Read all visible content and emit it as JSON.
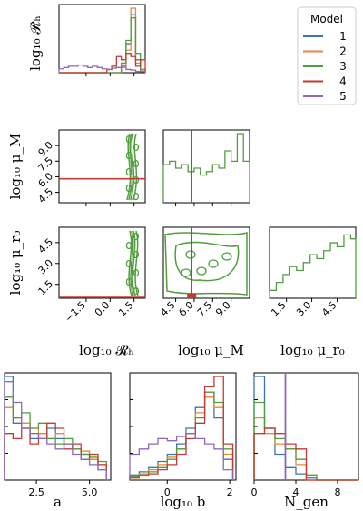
{
  "chart_data": {
    "type": "corner-histogram",
    "legend": {
      "title": "Model",
      "placement": "top-right",
      "entries": [
        {
          "label": "1",
          "color": "#3b75af"
        },
        {
          "label": "2",
          "color": "#ef8636"
        },
        {
          "label": "3",
          "color": "#519e3e"
        },
        {
          "label": "4",
          "color": "#c53a32"
        },
        {
          "label": "5",
          "color": "#8d69b8"
        }
      ]
    },
    "corner_axis_labels": {
      "rh": "log₁₀ 𝓡ₕ",
      "mum": "log₁₀ μ_M",
      "mur0": "log₁₀ μ_r₀"
    },
    "corner_ticks": {
      "rh": [
        "−1.5",
        "0.0",
        "1.5"
      ],
      "mum": [
        "4.5",
        "6.0",
        "7.5",
        "9.0"
      ],
      "mur0": [
        "1.5",
        "3.0",
        "4.5"
      ]
    },
    "corner_ranges": {
      "rh": [
        -3.2,
        2.2
      ],
      "mum": [
        3.5,
        10.5
      ],
      "mur0": [
        0.5,
        5.6
      ]
    },
    "corner_diag_rh": {
      "bins": [
        -3.2,
        -2.9,
        -2.6,
        -2.3,
        -2.0,
        -1.7,
        -1.4,
        -1.1,
        -0.8,
        -0.5,
        -0.2,
        0.1,
        0.4,
        0.7,
        1.0,
        1.3,
        1.6,
        1.9,
        2.2
      ],
      "series": [
        {
          "name": "1",
          "color": "#3b75af",
          "values": [
            0,
            0,
            0,
            0,
            0,
            0,
            0,
            0,
            0,
            0,
            0,
            0,
            0,
            0.12,
            0.45,
            0.9,
            0.2,
            0.02
          ]
        },
        {
          "name": "2",
          "color": "#ef8636",
          "values": [
            0,
            0,
            0,
            0,
            0,
            0,
            0,
            0,
            0,
            0,
            0,
            0,
            0,
            0.08,
            0.35,
            1.0,
            0.15,
            0.02
          ]
        },
        {
          "name": "3",
          "color": "#519e3e",
          "values": [
            0,
            0,
            0,
            0,
            0,
            0,
            0,
            0,
            0,
            0,
            0,
            0,
            0,
            0.15,
            0.5,
            0.85,
            0.3,
            0.05
          ]
        },
        {
          "name": "4",
          "color": "#c53a32",
          "values": [
            0,
            0,
            0,
            0,
            0,
            0,
            0,
            0,
            0,
            0,
            0.05,
            0.1,
            0.25,
            0.2,
            0.3,
            0.25,
            0.1,
            0.2
          ]
        },
        {
          "name": "5",
          "color": "#8d69b8",
          "values": [
            0.06,
            0.08,
            0.1,
            0.1,
            0.12,
            0.1,
            0.08,
            0.1,
            0.08,
            0.06,
            0.05,
            0.07,
            0.08,
            0.1,
            0.05,
            0.04,
            0.02,
            0.02
          ]
        }
      ]
    },
    "corner_diag_mum": {
      "bins": [
        3.5,
        4.0,
        4.5,
        5.0,
        5.5,
        6.0,
        6.5,
        7.0,
        7.5,
        8.0,
        8.5,
        9.0,
        9.5,
        10.0,
        10.5
      ],
      "series": [
        {
          "name": "3",
          "color": "#519e3e",
          "values": [
            0.55,
            0.6,
            0.5,
            0.55,
            0.45,
            0.5,
            0.4,
            0.45,
            0.55,
            0.5,
            0.75,
            0.6,
            1.0,
            0.6
          ]
        }
      ],
      "vline": {
        "value": 5.8,
        "color": "#c53a32"
      }
    },
    "corner_diag_mur0": {
      "bins": [
        0.5,
        0.9,
        1.3,
        1.7,
        2.1,
        2.5,
        2.9,
        3.3,
        3.7,
        4.1,
        4.5,
        4.9,
        5.3,
        5.6
      ],
      "series": [
        {
          "name": "3",
          "color": "#519e3e",
          "values": [
            0.1,
            0.2,
            0.3,
            0.4,
            0.35,
            0.45,
            0.55,
            0.5,
            0.6,
            0.7,
            0.65,
            0.8,
            0.75
          ]
        }
      ]
    },
    "corner_offdiag": {
      "mum_vs_rh": {
        "hline": {
          "value": 5.8,
          "color": "#c53a32"
        },
        "contour_color": "#519e3e"
      },
      "mur0_vs_rh": {
        "hline": {
          "value": 0.5,
          "color": "#c53a32"
        },
        "contour_color": "#519e3e"
      },
      "mur0_vs_mum": {
        "vline": {
          "value": 5.8,
          "color": "#c53a32"
        },
        "contour_color": "#519e3e"
      }
    },
    "bottom_panels": [
      {
        "xlabel": "a",
        "ticks": [
          "2.5",
          "5.0"
        ],
        "xrange": [
          1.0,
          6.0
        ],
        "bins": [
          1.0,
          1.4,
          1.8,
          2.2,
          2.6,
          3.0,
          3.4,
          3.8,
          4.2,
          4.6,
          5.0,
          5.4,
          5.8
        ],
        "series": [
          {
            "name": "1",
            "color": "#3b75af",
            "values": [
              1.0,
              0.55,
              0.5,
              0.4,
              0.45,
              0.5,
              0.4,
              0.35,
              0.3,
              0.25,
              0.2,
              0.1
            ]
          },
          {
            "name": "2",
            "color": "#ef8636",
            "values": [
              0.7,
              0.6,
              0.55,
              0.5,
              0.45,
              0.4,
              0.45,
              0.35,
              0.3,
              0.28,
              0.2,
              0.15
            ]
          },
          {
            "name": "3",
            "color": "#519e3e",
            "values": [
              0.8,
              0.6,
              0.65,
              0.5,
              0.55,
              0.4,
              0.35,
              0.4,
              0.3,
              0.25,
              0.22,
              0.18
            ]
          },
          {
            "name": "4",
            "color": "#c53a32",
            "values": [
              0.45,
              0.4,
              0.5,
              0.35,
              0.4,
              0.55,
              0.5,
              0.3,
              0.35,
              0.2,
              0.25,
              0.15
            ]
          },
          {
            "name": "5",
            "color": "#8d69b8",
            "values": [
              0.95,
              0.75,
              0.5,
              0.45,
              0.4,
              0.35,
              0.3,
              0.35,
              0.25,
              0.2,
              0.15,
              0.1
            ]
          }
        ]
      },
      {
        "xlabel": "log₁₀ b",
        "ticks": [
          "0",
          "2"
        ],
        "xrange": [
          -1.2,
          2.2
        ],
        "bins": [
          -1.2,
          -0.9,
          -0.6,
          -0.3,
          0.0,
          0.3,
          0.6,
          0.9,
          1.2,
          1.5,
          1.8,
          2.1
        ],
        "series": [
          {
            "name": "1",
            "color": "#3b75af",
            "values": [
              0.05,
              0.08,
              0.12,
              0.18,
              0.25,
              0.35,
              0.5,
              0.7,
              0.85,
              0.6,
              0.2
            ]
          },
          {
            "name": "2",
            "color": "#ef8636",
            "values": [
              0.04,
              0.06,
              0.1,
              0.15,
              0.22,
              0.3,
              0.45,
              0.65,
              0.8,
              0.7,
              0.25
            ]
          },
          {
            "name": "3",
            "color": "#519e3e",
            "values": [
              0.03,
              0.05,
              0.08,
              0.12,
              0.2,
              0.3,
              0.45,
              0.6,
              0.85,
              0.75,
              0.3
            ]
          },
          {
            "name": "4",
            "color": "#c53a32",
            "values": [
              0.02,
              0.04,
              0.06,
              0.1,
              0.15,
              0.25,
              0.4,
              0.55,
              0.9,
              1.0,
              0.35
            ]
          },
          {
            "name": "5",
            "color": "#8d69b8",
            "values": [
              0.25,
              0.3,
              0.35,
              0.4,
              0.38,
              0.42,
              0.45,
              0.4,
              0.35,
              0.3,
              0.1
            ]
          }
        ]
      },
      {
        "xlabel": "N_gen",
        "ticks": [
          "0",
          "4",
          "8"
        ],
        "xrange": [
          0,
          10
        ],
        "bins": [
          0,
          1,
          2,
          3,
          4,
          5,
          6,
          7,
          8,
          9,
          10
        ],
        "series": [
          {
            "name": "1",
            "color": "#3b75af",
            "values": [
              1.0,
              0.5,
              0.25,
              0.12,
              0.06,
              0.02,
              0.0,
              0.0,
              0.0,
              0.0
            ]
          },
          {
            "name": "2",
            "color": "#ef8636",
            "values": [
              0.6,
              0.45,
              0.35,
              0.3,
              0.15,
              0.0,
              0.0,
              0.0,
              0.0,
              0.0
            ]
          },
          {
            "name": "3",
            "color": "#519e3e",
            "values": [
              0.75,
              0.5,
              0.4,
              0.3,
              0.2,
              0.05,
              0.0,
              0.0,
              0.0,
              0.0
            ]
          },
          {
            "name": "4",
            "color": "#c53a32",
            "values": [
              0.45,
              0.5,
              0.45,
              0.35,
              0.3,
              0.0,
              0.0,
              0.0,
              0.0,
              0.0
            ]
          }
        ],
        "vline": {
          "value": 3,
          "color": "#8d69b8"
        }
      }
    ]
  }
}
